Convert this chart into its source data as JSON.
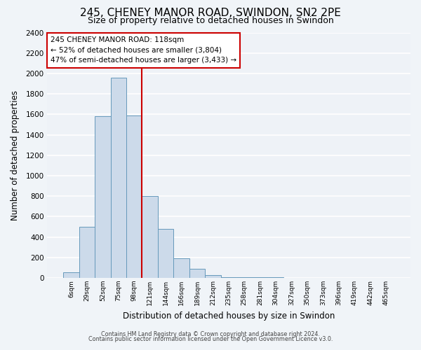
{
  "title": "245, CHENEY MANOR ROAD, SWINDON, SN2 2PE",
  "subtitle": "Size of property relative to detached houses in Swindon",
  "xlabel": "Distribution of detached houses by size in Swindon",
  "ylabel": "Number of detached properties",
  "footer_line1": "Contains HM Land Registry data © Crown copyright and database right 2024.",
  "footer_line2": "Contains public sector information licensed under the Open Government Licence v3.0.",
  "bar_labels": [
    "6sqm",
    "29sqm",
    "52sqm",
    "75sqm",
    "98sqm",
    "121sqm",
    "144sqm",
    "166sqm",
    "189sqm",
    "212sqm",
    "235sqm",
    "258sqm",
    "281sqm",
    "304sqm",
    "327sqm",
    "350sqm",
    "373sqm",
    "396sqm",
    "419sqm",
    "442sqm",
    "465sqm"
  ],
  "bar_values": [
    55,
    500,
    1580,
    1960,
    1590,
    800,
    480,
    190,
    90,
    30,
    5,
    5,
    5,
    5,
    0,
    0,
    0,
    0,
    0,
    0,
    0
  ],
  "bar_color": "#ccdaea",
  "bar_edge_color": "#6699bb",
  "ylim": [
    0,
    2400
  ],
  "yticks": [
    0,
    200,
    400,
    600,
    800,
    1000,
    1200,
    1400,
    1600,
    1800,
    2000,
    2200,
    2400
  ],
  "property_line_index": 4,
  "property_line_color": "#cc0000",
  "annotation_text": "245 CHENEY MANOR ROAD: 118sqm\n← 52% of detached houses are smaller (3,804)\n47% of semi-detached houses are larger (3,433) →",
  "annotation_box_facecolor": "#ffffff",
  "annotation_box_edgecolor": "#cc0000",
  "background_color": "#f0f4f8",
  "plot_bg_color": "#eef2f7",
  "grid_color": "#ffffff",
  "title_fontsize": 11,
  "subtitle_fontsize": 9
}
